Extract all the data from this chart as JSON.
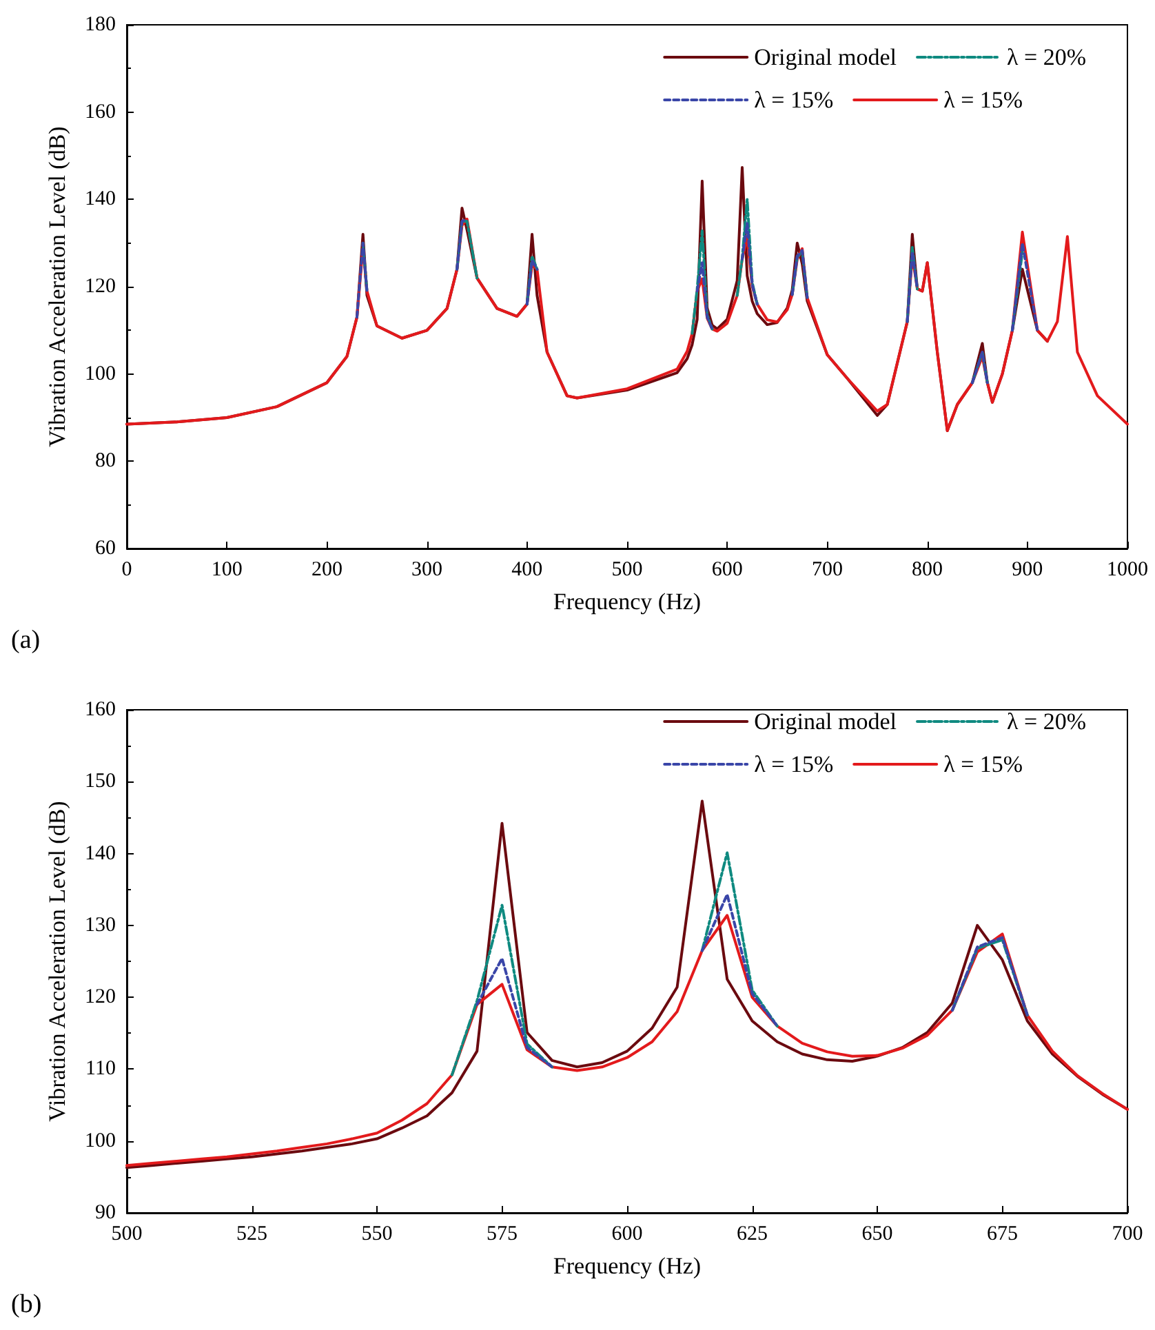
{
  "chart_data": [
    {
      "type": "line",
      "xlabel": "Frequency (Hz)",
      "ylabel": "Vibration Acceleration Level (dB)",
      "annotations": [
        "(a)"
      ],
      "xlim": [
        0,
        1000
      ],
      "xticks": [
        0,
        100,
        200,
        300,
        400,
        500,
        600,
        700,
        800,
        900,
        1000
      ],
      "ylim": [
        60,
        180
      ],
      "yticks": [
        60,
        80,
        100,
        120,
        140,
        160,
        180
      ],
      "grid": false,
      "legend": "top right",
      "marker": "none",
      "x": [
        0,
        50,
        100,
        150,
        200,
        220,
        230,
        236,
        240,
        250,
        275,
        300,
        320,
        330,
        335,
        340,
        350,
        370,
        390,
        400,
        405,
        410,
        420,
        440,
        450,
        500,
        550,
        560,
        565,
        570,
        575,
        580,
        585,
        590,
        600,
        610,
        615,
        620,
        625,
        630,
        640,
        650,
        660,
        665,
        670,
        675,
        680,
        700,
        720,
        750,
        760,
        780,
        785,
        790,
        795,
        800,
        810,
        820,
        830,
        845,
        855,
        860,
        865,
        875,
        885,
        895,
        910,
        920,
        930,
        940,
        950,
        970,
        1000
      ],
      "series": [
        {
          "name": "Original model",
          "color": "#6b0a0f",
          "line_style": "solid",
          "values": [
            88.5,
            89,
            90,
            92.5,
            98,
            104,
            113,
            132,
            118,
            111,
            108.2,
            110,
            115,
            124,
            138,
            133,
            122,
            115,
            113.2,
            116,
            132,
            118,
            105,
            95,
            94.5,
            96.3,
            100.3,
            103.5,
            106.7,
            112.5,
            144.2,
            115.1,
            111.2,
            110.3,
            112.5,
            121.4,
            147.3,
            122.5,
            116.7,
            113.8,
            111.3,
            111.8,
            115.1,
            119.2,
            130,
            125.2,
            116.7,
            104.4,
            99,
            90.5,
            93,
            112,
            132,
            119.5,
            119,
            125.5,
            105,
            87,
            93,
            98,
            107,
            98,
            93.5,
            100,
            110,
            124,
            110,
            107.5,
            null,
            null,
            null,
            null,
            null
          ]
        },
        {
          "name": "λ = 20%",
          "color": "#0f8a80",
          "line_style": "dashdot",
          "values": [
            null,
            null,
            null,
            null,
            null,
            null,
            null,
            130,
            119,
            null,
            null,
            null,
            null,
            124,
            135,
            135,
            122,
            null,
            null,
            116,
            127,
            124,
            null,
            null,
            null,
            null,
            null,
            null,
            109.3,
            119.5,
            132.8,
            113.5,
            110.3,
            null,
            null,
            118,
            126.5,
            140,
            121,
            116,
            null,
            null,
            null,
            118.2,
            126.8,
            128,
            117.5,
            null,
            null,
            null,
            null,
            112,
            129,
            119.5,
            null,
            null,
            null,
            null,
            null,
            98,
            105,
            98,
            null,
            null,
            110,
            128,
            null,
            null,
            null,
            null,
            null,
            null,
            null
          ]
        },
        {
          "name": "λ = 15%",
          "color": "#3a46a8",
          "line_style": "dashed",
          "values": [
            null,
            null,
            null,
            null,
            null,
            null,
            113,
            130,
            119,
            null,
            null,
            null,
            null,
            124,
            135,
            135.5,
            null,
            null,
            null,
            116,
            126,
            124,
            null,
            null,
            null,
            null,
            null,
            null,
            null,
            119,
            125.5,
            113,
            110.3,
            null,
            null,
            null,
            126.3,
            134.5,
            120.5,
            116,
            null,
            null,
            null,
            118.2,
            127,
            128.3,
            117.5,
            null,
            null,
            null,
            null,
            112,
            128,
            119.5,
            null,
            null,
            null,
            null,
            null,
            98,
            105,
            98,
            null,
            null,
            110,
            130,
            110,
            null,
            null,
            null,
            null,
            null,
            null
          ]
        },
        {
          "name": "λ = 15%",
          "color": "#e31a1c",
          "line_style": "solid",
          "values": [
            88.5,
            89,
            90,
            92.5,
            98,
            104,
            113,
            129,
            119,
            111,
            108.2,
            110,
            115,
            124,
            134,
            135.5,
            122,
            115,
            113.2,
            116,
            125,
            124,
            105,
            95,
            94.5,
            96.6,
            101.1,
            105.2,
            109.3,
            119,
            121.8,
            112.8,
            110.3,
            109.8,
            111.6,
            118,
            126.3,
            131.3,
            120.2,
            116,
            112.4,
            111.9,
            114.7,
            118.2,
            126.3,
            128.7,
            117.5,
            104.4,
            99,
            91.5,
            93,
            112,
            127,
            119.5,
            119,
            125.5,
            105,
            87,
            93,
            98,
            104,
            98,
            93.5,
            100,
            110,
            132.5,
            110,
            107.5,
            112,
            131.5,
            105,
            95,
            88.5
          ]
        }
      ]
    },
    {
      "type": "line",
      "xlabel": "Frequency (Hz)",
      "ylabel": "Vibration Acceleration Level (dB)",
      "annotations": [
        "(b)"
      ],
      "xlim": [
        500,
        700
      ],
      "xticks": [
        500,
        525,
        550,
        575,
        600,
        625,
        650,
        675,
        700
      ],
      "ylim": [
        90,
        160
      ],
      "yticks": [
        90,
        100,
        110,
        120,
        130,
        140,
        150,
        160
      ],
      "grid": false,
      "legend": "top right",
      "marker": "none",
      "x": [
        500,
        505,
        510,
        515,
        520,
        525,
        530,
        535,
        540,
        545,
        550,
        555,
        560,
        565,
        570,
        575,
        580,
        585,
        590,
        595,
        600,
        605,
        610,
        615,
        620,
        625,
        630,
        635,
        640,
        645,
        650,
        655,
        660,
        665,
        670,
        675,
        680,
        685,
        690,
        695,
        700
      ],
      "series": [
        {
          "name": "Original model",
          "color": "#6b0a0f",
          "line_style": "solid",
          "values": [
            96.3,
            96.6,
            96.9,
            97.2,
            97.5,
            97.8,
            98.2,
            98.6,
            99.1,
            99.6,
            100.3,
            101.8,
            103.5,
            106.7,
            112.5,
            144.2,
            115.1,
            111.2,
            110.3,
            110.9,
            112.5,
            115.7,
            121.4,
            147.3,
            122.5,
            116.7,
            113.8,
            112.1,
            111.3,
            111.1,
            111.8,
            113,
            115.1,
            119.2,
            130,
            125.2,
            116.7,
            112.1,
            109,
            106.5,
            104.4
          ]
        },
        {
          "name": "λ = 20%",
          "color": "#0f8a80",
          "line_style": "dashdot",
          "values": [
            null,
            null,
            null,
            null,
            null,
            null,
            null,
            null,
            null,
            null,
            null,
            null,
            null,
            109.2,
            119.5,
            132.8,
            113.5,
            110.3,
            null,
            null,
            null,
            null,
            null,
            126.5,
            140.1,
            121,
            116,
            null,
            null,
            null,
            null,
            null,
            null,
            118.2,
            126.8,
            128,
            117.5,
            null,
            null,
            null,
            null
          ]
        },
        {
          "name": "λ = 15%",
          "color": "#3a46a8",
          "line_style": "dashed",
          "values": [
            null,
            null,
            null,
            null,
            null,
            null,
            null,
            null,
            null,
            null,
            null,
            null,
            null,
            null,
            119,
            125.4,
            113,
            110.3,
            null,
            null,
            null,
            null,
            null,
            126.5,
            134.3,
            120.5,
            116,
            null,
            null,
            null,
            null,
            null,
            null,
            118.2,
            127,
            128.3,
            117.5,
            null,
            null,
            null,
            null
          ]
        },
        {
          "name": "λ = 15%",
          "color": "#e31a1c",
          "line_style": "solid",
          "values": [
            96.6,
            96.9,
            97.2,
            97.5,
            97.8,
            98.2,
            98.6,
            99.1,
            99.6,
            100.3,
            101.1,
            102.9,
            105.2,
            109.2,
            119,
            121.8,
            112.7,
            110.3,
            109.8,
            110.3,
            111.6,
            113.8,
            118,
            126.5,
            131.4,
            120,
            116,
            113.6,
            112.4,
            111.8,
            111.9,
            112.9,
            114.7,
            118.2,
            126.3,
            128.8,
            117.5,
            112.5,
            109.1,
            106.6,
            104.4
          ]
        }
      ]
    }
  ]
}
